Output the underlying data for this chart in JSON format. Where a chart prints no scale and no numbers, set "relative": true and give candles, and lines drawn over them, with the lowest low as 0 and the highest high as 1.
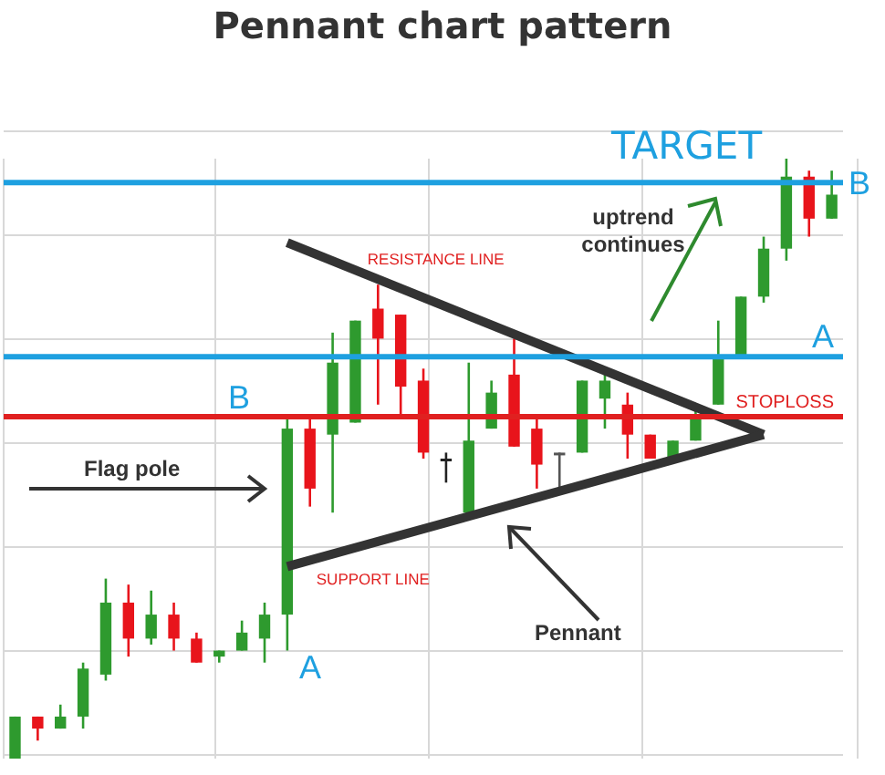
{
  "chart_data": {
    "type": "candlestick",
    "title": "Pennant chart pattern",
    "relative": true,
    "grid": true,
    "categories": [
      null,
      null,
      null,
      null,
      null,
      null,
      null,
      null,
      null,
      null,
      null,
      null,
      null,
      null,
      null,
      null,
      null,
      null,
      null,
      null,
      null,
      null,
      null,
      null,
      null,
      null,
      null,
      null,
      null,
      null,
      null,
      null,
      null,
      null,
      null,
      null,
      null
    ],
    "ohlc": [
      [
        0,
        0.07,
        0,
        0.07
      ],
      [
        0.07,
        0.07,
        0.03,
        0.05
      ],
      [
        0.05,
        0.09,
        0.05,
        0.07
      ],
      [
        0.07,
        0.16,
        0.05,
        0.15
      ],
      [
        0.14,
        0.3,
        0.13,
        0.26
      ],
      [
        0.26,
        0.29,
        0.17,
        0.2
      ],
      [
        0.2,
        0.28,
        0.19,
        0.24
      ],
      [
        0.24,
        0.26,
        0.18,
        0.2
      ],
      [
        0.2,
        0.21,
        0.16,
        0.16
      ],
      [
        0.17,
        0.18,
        0.16,
        0.18
      ],
      [
        0.18,
        0.23,
        0.18,
        0.21
      ],
      [
        0.2,
        0.26,
        0.16,
        0.24
      ],
      [
        0.24,
        0.57,
        0.18,
        0.55
      ],
      [
        0.55,
        0.57,
        0.42,
        0.45
      ],
      [
        0.54,
        0.71,
        0.41,
        0.66
      ],
      [
        0.56,
        0.73,
        0.56,
        0.73
      ],
      [
        0.75,
        0.79,
        0.59,
        0.7
      ],
      [
        0.74,
        0.74,
        0.57,
        0.62
      ],
      [
        0.63,
        0.65,
        0.5,
        0.51
      ],
      [
        0.5,
        0.51,
        0.46,
        0.5
      ],
      [
        0.41,
        0.66,
        0.41,
        0.53
      ],
      [
        0.55,
        0.63,
        0.55,
        0.61
      ],
      [
        0.64,
        0.7,
        0.52,
        0.52
      ],
      [
        0.55,
        0.57,
        0.45,
        0.49
      ],
      [
        0.51,
        0.51,
        0.44,
        0.51
      ],
      [
        0.51,
        0.63,
        0.51,
        0.63
      ],
      [
        0.6,
        0.64,
        0.55,
        0.63
      ],
      [
        0.59,
        0.61,
        0.5,
        0.54
      ],
      [
        0.54,
        0.54,
        0.5,
        0.5
      ],
      [
        0.5,
        0.53,
        0.5,
        0.53
      ],
      [
        0.53,
        0.58,
        0.53,
        0.57
      ],
      [
        0.59,
        0.73,
        0.59,
        0.67
      ],
      [
        0.67,
        0.77,
        0.67,
        0.77
      ],
      [
        0.77,
        0.87,
        0.76,
        0.85
      ],
      [
        0.85,
        1,
        0.83,
        0.97
      ],
      [
        0.97,
        0.98,
        0.87,
        0.9
      ],
      [
        0.9,
        0.98,
        0.9,
        0.94
      ]
    ],
    "colors": [
      "#2e9a2e",
      "#e8141b",
      "#2e9a2e",
      "#2e9a2e",
      "#2e9a2e",
      "#e8141b",
      "#2e9a2e",
      "#e8141b",
      "#e8141b",
      "#2e9a2e",
      "#2e9a2e",
      "#2e9a2e",
      "#2e9a2e",
      "#e8141b",
      "#2e9a2e",
      "#2e9a2e",
      "#e8141b",
      "#e8141b",
      "#e8141b",
      "#222222",
      "#2e9a2e",
      "#2e9a2e",
      "#e8141b",
      "#e8141b",
      "#555555",
      "#2e9a2e",
      "#2e9a2e",
      "#e8141b",
      "#e8141b",
      "#2e9a2e",
      "#2e9a2e",
      "#2e9a2e",
      "#2e9a2e",
      "#2e9a2e",
      "#2e9a2e",
      "#e8141b",
      "#2e9a2e"
    ],
    "series": [
      {
        "name": "RESISTANCE LINE",
        "type": "line",
        "color": "#333333",
        "values": [
          null,
          null,
          null,
          null,
          null,
          null,
          null,
          null,
          null,
          null,
          null,
          null,
          0.86,
          null,
          null,
          null,
          null,
          null,
          null,
          null,
          null,
          null,
          null,
          null,
          null,
          null,
          null,
          null,
          null,
          null,
          null,
          null,
          null,
          0.54,
          null,
          null,
          null
        ]
      },
      {
        "name": "SUPPORT LINE",
        "type": "line",
        "color": "#333333",
        "values": [
          null,
          null,
          null,
          null,
          null,
          null,
          null,
          null,
          null,
          null,
          null,
          null,
          0.32,
          null,
          null,
          null,
          null,
          null,
          null,
          null,
          null,
          null,
          null,
          null,
          null,
          null,
          null,
          null,
          null,
          null,
          null,
          null,
          null,
          0.54,
          null,
          null,
          null
        ]
      }
    ],
    "ref_lines": [
      {
        "axis": "y",
        "value": 0.96,
        "label": "B",
        "color": "#1ea0e0"
      },
      {
        "axis": "y",
        "value": 0.67,
        "label": "A",
        "color": "#1ea0e0"
      },
      {
        "axis": "y",
        "value": 0.57,
        "label": "STOPLOSS",
        "color": "#e02020"
      }
    ],
    "annotations": [
      "TARGET",
      "uptrend continues",
      "Flag pole",
      "Pennant",
      "A",
      "B"
    ]
  }
}
